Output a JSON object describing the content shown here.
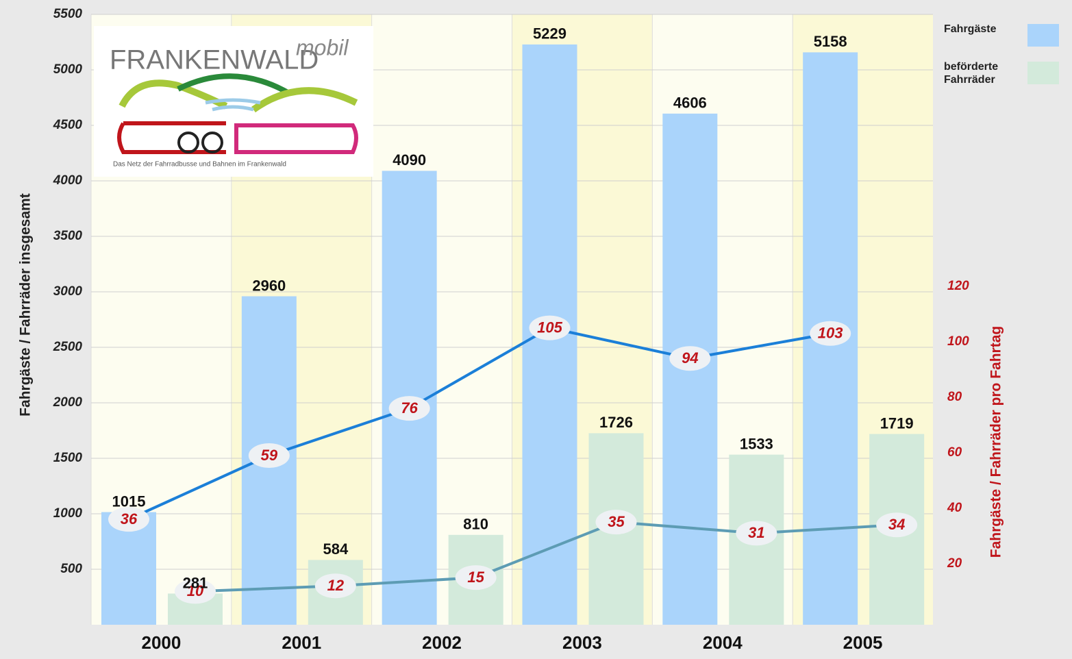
{
  "chart_data": {
    "type": "bar",
    "logo": {
      "title": "FRANKENWALD",
      "script": "mobil",
      "tagline": "Das Netz der Fahrradbusse und Bahnen im Frankenwald"
    },
    "y_label": "Fahrgäste / Fahrräder insgesamt",
    "y2_label": "Fahrgäste / Fahrräder pro Fahrtag",
    "categories": [
      "2000",
      "2001",
      "2002",
      "2003",
      "2004",
      "2005"
    ],
    "series": [
      {
        "name": "Fahrgäste",
        "color": "#aad4fb",
        "values": [
          1015,
          2960,
          4090,
          5229,
          4606,
          5158
        ]
      },
      {
        "name": "beförderte Fahrräder",
        "color": "#d3eadb",
        "values": [
          281,
          584,
          810,
          1726,
          1533,
          1719
        ]
      },
      {
        "type": "line",
        "axis": "y2",
        "color": "#1b7fd8",
        "values": [
          36,
          59,
          76,
          105,
          94,
          103
        ]
      },
      {
        "type": "line",
        "axis": "y2",
        "color": "#5d9cb4",
        "values": [
          10,
          12,
          15,
          35,
          31,
          34
        ]
      }
    ],
    "ylim": [
      0,
      5500
    ],
    "yticks": [
      500,
      1000,
      1500,
      2000,
      2500,
      3000,
      3500,
      4000,
      4500,
      5000,
      5500
    ],
    "y2lim": [
      -2,
      218
    ],
    "y2ticks": [
      20,
      40,
      60,
      80,
      100,
      120
    ],
    "grid": true
  }
}
